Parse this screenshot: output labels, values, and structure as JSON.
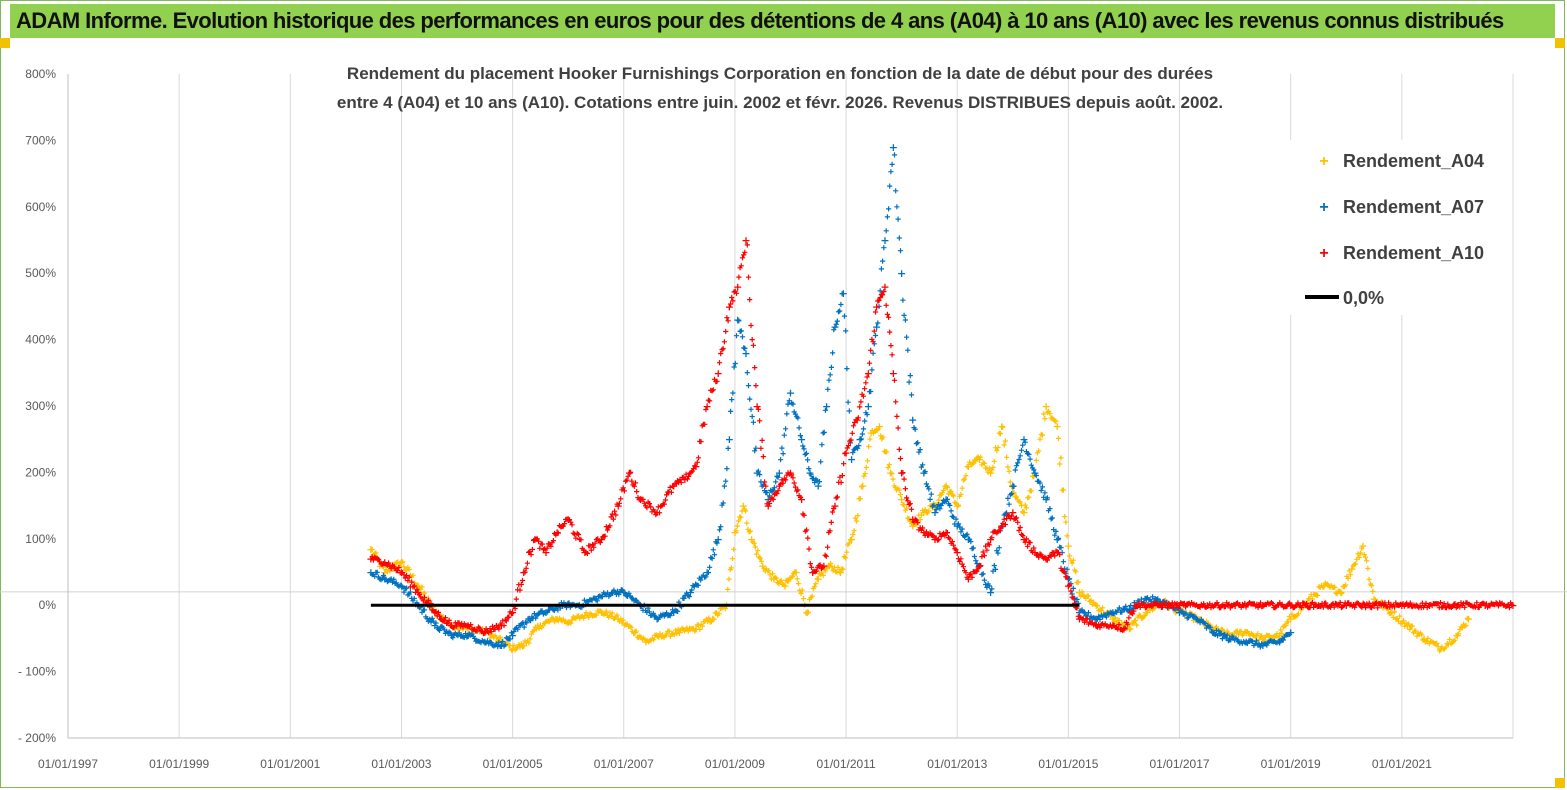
{
  "banner": {
    "title": "ADAM Informe. Evolution historique des performances en euros pour des détentions de 4 ans (A04) à 10 ans (A10) avec les revenus connus distribués"
  },
  "colors": {
    "banner_bg": "#92d050",
    "corner": "#f2c200",
    "a04": "#ffc000",
    "a07": "#0070c0",
    "a10": "#ff0000",
    "zero": "#000000"
  },
  "chart_data": {
    "type": "scatter",
    "title_lines": [
      "Rendement du placement Hooker Furnishings Corporation en fonction de la date de début pour des durées",
      "entre 4 (A04) et 10 ans (A10).  Cotations entre juin. 2002 et févr. 2026. Revenus DISTRIBUES depuis août. 2002."
    ],
    "xlabel": "",
    "ylabel": "",
    "x_range": [
      1997.0,
      2023.0
    ],
    "ylim": [
      -200,
      800
    ],
    "y_ticks": [
      {
        "value": 800,
        "label": "800%"
      },
      {
        "value": 700,
        "label": "700%"
      },
      {
        "value": 600,
        "label": "600%"
      },
      {
        "value": 500,
        "label": "500%"
      },
      {
        "value": 400,
        "label": "400%"
      },
      {
        "value": 300,
        "label": "300%"
      },
      {
        "value": 200,
        "label": "200%"
      },
      {
        "value": 100,
        "label": "100%"
      },
      {
        "value": 0,
        "label": "0%"
      },
      {
        "value": -100,
        "label": "- 100%"
      },
      {
        "value": -200,
        "label": "- 200%"
      }
    ],
    "x_ticks": [
      {
        "value": 1997,
        "label": "01/01/1997"
      },
      {
        "value": 1999,
        "label": "01/01/1999"
      },
      {
        "value": 2001,
        "label": "01/01/2001"
      },
      {
        "value": 2003,
        "label": "01/01/2003"
      },
      {
        "value": 2005,
        "label": "01/01/2005"
      },
      {
        "value": 2007,
        "label": "01/01/2007"
      },
      {
        "value": 2009,
        "label": "01/01/2009"
      },
      {
        "value": 2011,
        "label": "01/01/2011"
      },
      {
        "value": 2013,
        "label": "01/01/2013"
      },
      {
        "value": 2015,
        "label": "01/01/2015"
      },
      {
        "value": 2017,
        "label": "01/01/2017"
      },
      {
        "value": 2019,
        "label": "01/01/2019"
      },
      {
        "value": 2021,
        "label": "01/01/2021"
      }
    ],
    "grid": "vertical",
    "legend_position": "top-right",
    "series": [
      {
        "name": "Rendement_A04",
        "marker": "plus",
        "color": "#ffc000",
        "x": [
          2002.45,
          2002.7,
          2003.0,
          2003.3,
          2003.6,
          2003.9,
          2004.2,
          2004.5,
          2004.8,
          2005.0,
          2005.2,
          2005.5,
          2005.8,
          2006.0,
          2006.3,
          2006.6,
          2006.9,
          2007.2,
          2007.4,
          2007.7,
          2008.0,
          2008.3,
          2008.6,
          2008.85,
          2009.0,
          2009.15,
          2009.3,
          2009.5,
          2009.7,
          2009.9,
          2010.1,
          2010.3,
          2010.5,
          2010.7,
          2010.9,
          2011.1,
          2011.3,
          2011.45,
          2011.6,
          2011.8,
          2012.0,
          2012.2,
          2012.4,
          2012.6,
          2012.8,
          2013.0,
          2013.2,
          2013.4,
          2013.6,
          2013.8,
          2014.0,
          2014.2,
          2014.4,
          2014.6,
          2014.8,
          2015.0,
          2015.2,
          2015.5,
          2015.8,
          2016.1,
          2016.4,
          2016.7,
          2017.0,
          2017.3,
          2017.6,
          2017.9,
          2018.2,
          2018.5,
          2018.8,
          2019.0,
          2019.3,
          2019.6,
          2019.9,
          2020.1,
          2020.3,
          2020.5,
          2020.8,
          2021.1,
          2021.4,
          2021.7,
          2022.0,
          2022.2
        ],
        "values": [
          85,
          50,
          65,
          30,
          -10,
          -30,
          -35,
          -40,
          -55,
          -65,
          -60,
          -30,
          -20,
          -25,
          -15,
          -10,
          -20,
          -40,
          -55,
          -45,
          -40,
          -35,
          -20,
          0,
          110,
          150,
          100,
          60,
          40,
          30,
          50,
          -10,
          40,
          60,
          50,
          100,
          180,
          260,
          270,
          200,
          160,
          120,
          140,
          150,
          180,
          150,
          210,
          220,
          200,
          270,
          170,
          140,
          200,
          300,
          270,
          90,
          20,
          0,
          -20,
          -35,
          -10,
          5,
          -10,
          -20,
          -35,
          -45,
          -40,
          -50,
          -45,
          -20,
          5,
          30,
          20,
          55,
          90,
          10,
          -10,
          -30,
          -50,
          -65,
          -45,
          -20
        ]
      },
      {
        "name": "Rendement_A07",
        "marker": "plus",
        "color": "#0070c0",
        "x": [
          2002.45,
          2002.7,
          2003.0,
          2003.3,
          2003.6,
          2003.9,
          2004.2,
          2004.5,
          2004.8,
          2005.0,
          2005.3,
          2005.6,
          2005.9,
          2006.2,
          2006.5,
          2006.8,
          2007.0,
          2007.3,
          2007.6,
          2007.9,
          2008.2,
          2008.5,
          2008.7,
          2008.9,
          2009.05,
          2009.2,
          2009.4,
          2009.6,
          2009.8,
          2010.0,
          2010.2,
          2010.35,
          2010.5,
          2010.65,
          2010.8,
          2010.95,
          2011.1,
          2011.25,
          2011.4,
          2011.55,
          2011.7,
          2011.85,
          2012.0,
          2012.2,
          2012.4,
          2012.6,
          2012.8,
          2013.0,
          2013.2,
          2013.4,
          2013.6,
          2013.8,
          2014.0,
          2014.2,
          2014.4,
          2014.6,
          2014.8,
          2015.0,
          2015.2,
          2015.5,
          2015.8,
          2016.1,
          2016.4,
          2016.7,
          2017.0,
          2017.3,
          2017.6,
          2017.9,
          2018.2,
          2018.5,
          2018.8,
          2019.0
        ],
        "values": [
          50,
          40,
          30,
          0,
          -30,
          -45,
          -45,
          -55,
          -60,
          -45,
          -20,
          -10,
          0,
          0,
          10,
          20,
          20,
          0,
          -20,
          -10,
          20,
          50,
          100,
          250,
          430,
          380,
          200,
          160,
          200,
          320,
          250,
          200,
          180,
          300,
          420,
          470,
          220,
          250,
          300,
          420,
          550,
          690,
          500,
          280,
          200,
          140,
          160,
          120,
          100,
          60,
          20,
          120,
          180,
          250,
          200,
          160,
          100,
          40,
          -10,
          -20,
          -10,
          -5,
          10,
          5,
          -10,
          -20,
          -40,
          -50,
          -55,
          -60,
          -55,
          -40
        ]
      },
      {
        "name": "Rendement_A10",
        "marker": "plus",
        "color": "#ff0000",
        "x": [
          2002.45,
          2002.7,
          2003.0,
          2003.3,
          2003.6,
          2003.9,
          2004.2,
          2004.5,
          2004.8,
          2005.0,
          2005.2,
          2005.4,
          2005.6,
          2005.8,
          2006.0,
          2006.3,
          2006.6,
          2006.9,
          2007.1,
          2007.3,
          2007.6,
          2007.9,
          2008.1,
          2008.3,
          2008.5,
          2008.7,
          2008.9,
          2009.05,
          2009.2,
          2009.4,
          2009.6,
          2009.8,
          2010.0,
          2010.2,
          2010.4,
          2010.6,
          2010.8,
          2011.0,
          2011.2,
          2011.4,
          2011.55,
          2011.7,
          2011.85,
          2012.0,
          2012.2,
          2012.4,
          2012.6,
          2012.8,
          2013.0,
          2013.2,
          2013.4,
          2013.6,
          2013.8,
          2014.0,
          2014.2,
          2014.4,
          2014.6,
          2014.8,
          2015.0,
          2015.2,
          2015.5,
          2015.8,
          2016.0,
          2016.2,
          2016.5,
          2017.0,
          2017.5,
          2018.0,
          2018.5,
          2019.0,
          2019.5,
          2020.0,
          2020.5,
          2021.0,
          2021.5,
          2022.0,
          2022.5,
          2023.0
        ],
        "values": [
          70,
          65,
          50,
          20,
          -10,
          -30,
          -30,
          -40,
          -30,
          -10,
          50,
          100,
          80,
          110,
          130,
          80,
          100,
          150,
          200,
          160,
          140,
          180,
          190,
          210,
          300,
          350,
          450,
          480,
          550,
          300,
          150,
          180,
          200,
          160,
          50,
          60,
          150,
          230,
          280,
          350,
          450,
          480,
          350,
          200,
          130,
          110,
          100,
          110,
          80,
          40,
          60,
          100,
          120,
          140,
          100,
          80,
          70,
          80,
          30,
          -20,
          -30,
          -30,
          -35,
          0,
          0,
          0,
          0,
          0,
          0,
          0,
          0,
          0,
          0,
          0,
          0,
          0,
          0,
          0
        ]
      },
      {
        "name": "0,0%",
        "marker": "line",
        "color": "#000000",
        "x": [
          2002.45,
          2015.2
        ],
        "values": [
          0,
          0
        ]
      }
    ]
  }
}
